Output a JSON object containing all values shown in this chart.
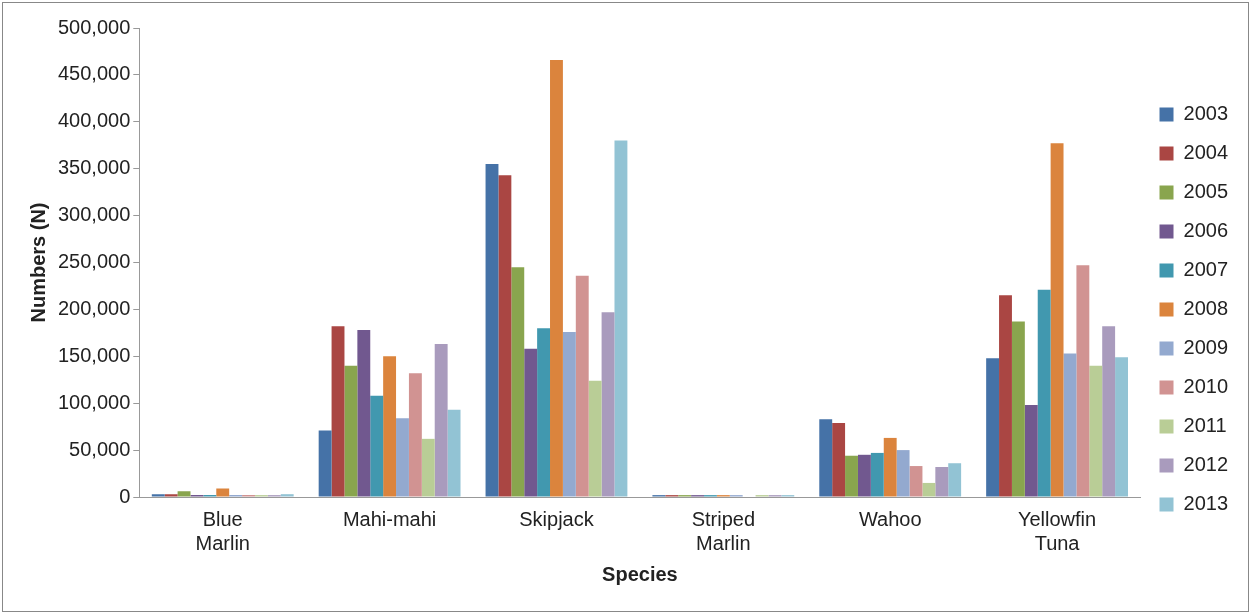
{
  "chart_data": {
    "type": "bar",
    "xlabel": "Species",
    "ylabel": "Numbers (N)",
    "categories": [
      "Blue Marlin",
      "Mahi-mahi",
      "Skipjack",
      "Striped Marlin",
      "Wahoo",
      "Yellowfin Tuna"
    ],
    "ylim": [
      0,
      500000
    ],
    "yticks": [
      {
        "value": 0,
        "label": "0"
      },
      {
        "value": 50000,
        "label": "50,000"
      },
      {
        "value": 100000,
        "label": "100,000"
      },
      {
        "value": 150000,
        "label": "150,000"
      },
      {
        "value": 200000,
        "label": "200,000"
      },
      {
        "value": 250000,
        "label": "250,000"
      },
      {
        "value": 300000,
        "label": "300,000"
      },
      {
        "value": 350000,
        "label": "350,000"
      },
      {
        "value": 400000,
        "label": "400,000"
      },
      {
        "value": 450000,
        "label": "450,000"
      },
      {
        "value": 500000,
        "label": "500,000"
      }
    ],
    "grid": false,
    "legend": "right",
    "series": [
      {
        "name": "2003",
        "color": "#4572a7",
        "values": [
          3000,
          71000,
          355000,
          2000,
          83000,
          148000
        ]
      },
      {
        "name": "2004",
        "color": "#aa4643",
        "values": [
          3000,
          182000,
          343000,
          2000,
          79000,
          215000
        ]
      },
      {
        "name": "2005",
        "color": "#89a54e",
        "values": [
          6000,
          140000,
          245000,
          2000,
          44000,
          187000
        ]
      },
      {
        "name": "2006",
        "color": "#71588f",
        "values": [
          2000,
          178000,
          158000,
          2000,
          45000,
          98000
        ]
      },
      {
        "name": "2007",
        "color": "#4198af",
        "values": [
          2000,
          108000,
          180000,
          2000,
          47000,
          221000
        ]
      },
      {
        "name": "2008",
        "color": "#db843d",
        "values": [
          9000,
          150000,
          466000,
          2000,
          63000,
          377000
        ]
      },
      {
        "name": "2009",
        "color": "#93a9cf",
        "values": [
          2000,
          84000,
          176000,
          2000,
          50000,
          153000
        ]
      },
      {
        "name": "2010",
        "color": "#d19392",
        "values": [
          2000,
          132000,
          236000,
          0,
          33000,
          247000
        ]
      },
      {
        "name": "2011",
        "color": "#b9cd96",
        "values": [
          2000,
          62000,
          124000,
          2000,
          15000,
          140000
        ]
      },
      {
        "name": "2012",
        "color": "#a99bbd",
        "values": [
          2000,
          163000,
          197000,
          2000,
          32000,
          182000
        ]
      },
      {
        "name": "2013",
        "color": "#92c3d4",
        "values": [
          3000,
          93000,
          380000,
          2000,
          36000,
          149000
        ]
      }
    ]
  }
}
